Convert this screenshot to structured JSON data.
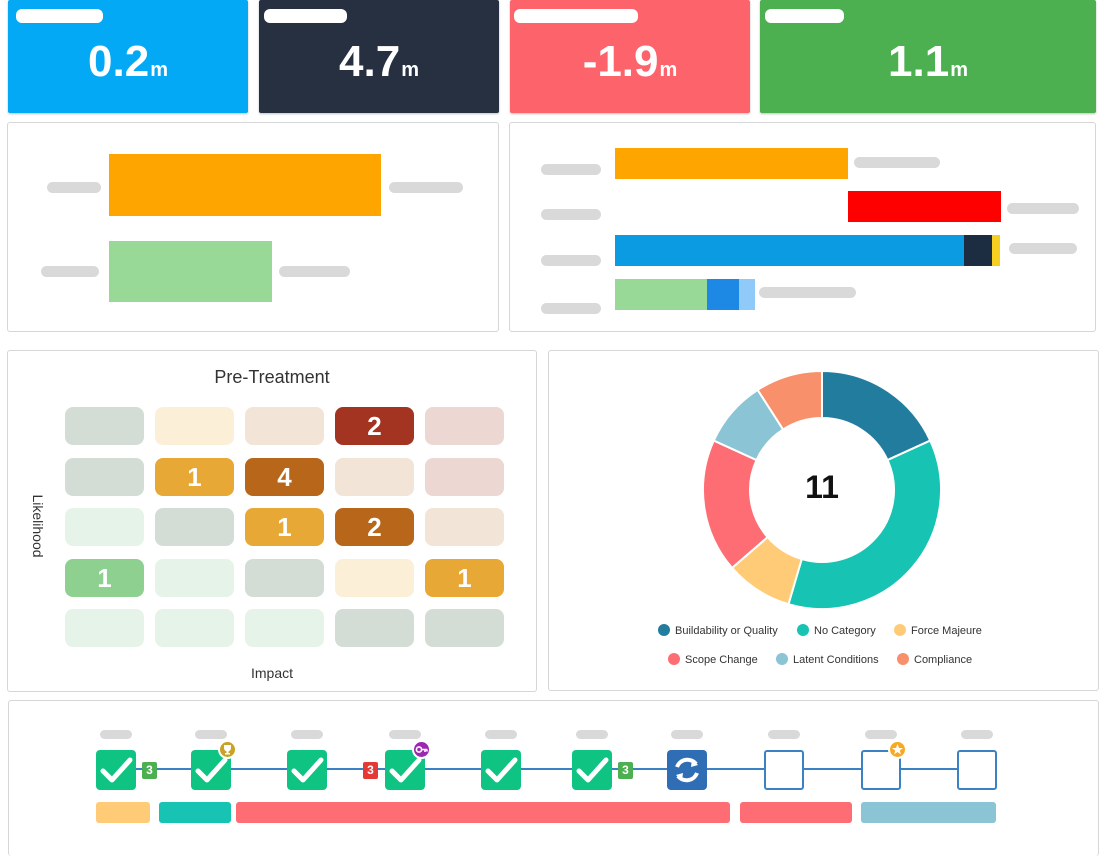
{
  "kpis": [
    {
      "value": "0.2",
      "unit": "m",
      "color": "#03a9f4"
    },
    {
      "value": "4.7",
      "unit": "m",
      "color": "#263040"
    },
    {
      "value": "-1.9",
      "unit": "m",
      "color": "#fc636b"
    },
    {
      "value": "1.1",
      "unit": "m",
      "color": "#4caf50"
    }
  ],
  "bars_left": [
    {
      "color": "#ffa500"
    },
    {
      "color": "#98d998"
    }
  ],
  "bars_right": [
    {
      "segments": [
        "#ffa500"
      ]
    },
    {
      "segments": [
        "#ff0000"
      ]
    },
    {
      "segments": [
        "#0b9be3",
        "#1c2d42",
        "#f5d020"
      ]
    },
    {
      "segments": [
        "#98d998",
        "#1e88e5",
        "#90caf9"
      ]
    }
  ],
  "risk_matrix": {
    "title": "Pre-Treatment",
    "y_label": "Likelihood",
    "x_label": "Impact",
    "rows": [
      [
        {
          "value": "",
          "color": "#d4ddd5"
        },
        {
          "value": "",
          "color": "#fcefd8"
        },
        {
          "value": "",
          "color": "#f2e4d6"
        },
        {
          "value": "2",
          "color": "#a33421"
        },
        {
          "value": "",
          "color": "#ecd7d3"
        }
      ],
      [
        {
          "value": "",
          "color": "#d4ddd5"
        },
        {
          "value": "1",
          "color": "#e8a835"
        },
        {
          "value": "4",
          "color": "#b8661a"
        },
        {
          "value": "",
          "color": "#f2e4d6"
        },
        {
          "value": "",
          "color": "#ecd7d3"
        }
      ],
      [
        {
          "value": "",
          "color": "#e6f3e8"
        },
        {
          "value": "",
          "color": "#d4ddd5"
        },
        {
          "value": "1",
          "color": "#e8a835"
        },
        {
          "value": "2",
          "color": "#b8661a"
        },
        {
          "value": "",
          "color": "#f2e4d6"
        }
      ],
      [
        {
          "value": "1",
          "color": "#8ed090"
        },
        {
          "value": "",
          "color": "#e6f3e8"
        },
        {
          "value": "",
          "color": "#d4ddd5"
        },
        {
          "value": "",
          "color": "#fcefd8"
        },
        {
          "value": "1",
          "color": "#e8a835"
        }
      ],
      [
        {
          "value": "",
          "color": "#e6f3e8"
        },
        {
          "value": "",
          "color": "#e6f3e8"
        },
        {
          "value": "",
          "color": "#e6f3e8"
        },
        {
          "value": "",
          "color": "#d4ddd5"
        },
        {
          "value": "",
          "color": "#d4ddd5"
        }
      ]
    ]
  },
  "donut": {
    "center_label": "11",
    "legend": [
      {
        "label": "Buildability or Quality",
        "color": "#227c9d"
      },
      {
        "label": "No Category",
        "color": "#17c3b2"
      },
      {
        "label": "Force Majeure",
        "color": "#ffcb77"
      },
      {
        "label": "Scope Change",
        "color": "#fe6d73"
      },
      {
        "label": "Latent Conditions",
        "color": "#8ac4d5"
      },
      {
        "label": "Compliance",
        "color": "#f7906b"
      }
    ]
  },
  "chart_data": {
    "type": "pie",
    "center_label": "11",
    "categories": [
      "Buildability or Quality",
      "No Category",
      "Force Majeure",
      "Scope Change",
      "Latent Conditions",
      "Compliance"
    ],
    "values": [
      2,
      4,
      1,
      2,
      1,
      1
    ]
  },
  "timeline": {
    "milestones": [
      {
        "state": "complete",
        "badge": "3",
        "badge_side": "right",
        "badge_color": "#4caf50",
        "extra": ""
      },
      {
        "state": "complete",
        "badge": "",
        "badge_side": "",
        "badge_color": "",
        "extra": "trophy-icon"
      },
      {
        "state": "complete",
        "badge": "",
        "badge_side": "",
        "badge_color": "",
        "extra": ""
      },
      {
        "state": "complete",
        "badge": "3",
        "badge_side": "left",
        "badge_color": "#e53935",
        "extra": "key-icon"
      },
      {
        "state": "complete",
        "badge": "",
        "badge_side": "",
        "badge_color": "",
        "extra": ""
      },
      {
        "state": "complete",
        "badge": "3",
        "badge_side": "right",
        "badge_color": "#4caf50",
        "extra": ""
      },
      {
        "state": "in-progress",
        "badge": "",
        "badge_side": "",
        "badge_color": "",
        "extra": ""
      },
      {
        "state": "pending",
        "badge": "",
        "badge_side": "",
        "badge_color": "",
        "extra": ""
      },
      {
        "state": "pending",
        "badge": "",
        "badge_side": "",
        "badge_color": "",
        "extra": "star-icon"
      },
      {
        "state": "pending",
        "badge": "",
        "badge_side": "",
        "badge_color": "",
        "extra": ""
      }
    ],
    "phases": [
      {
        "color": "#ffcb77"
      },
      {
        "color": "#17c3b2"
      },
      {
        "color": "#fe6d73"
      },
      {
        "color": "#fe6d73"
      },
      {
        "color": "#8ac4d5"
      }
    ]
  }
}
